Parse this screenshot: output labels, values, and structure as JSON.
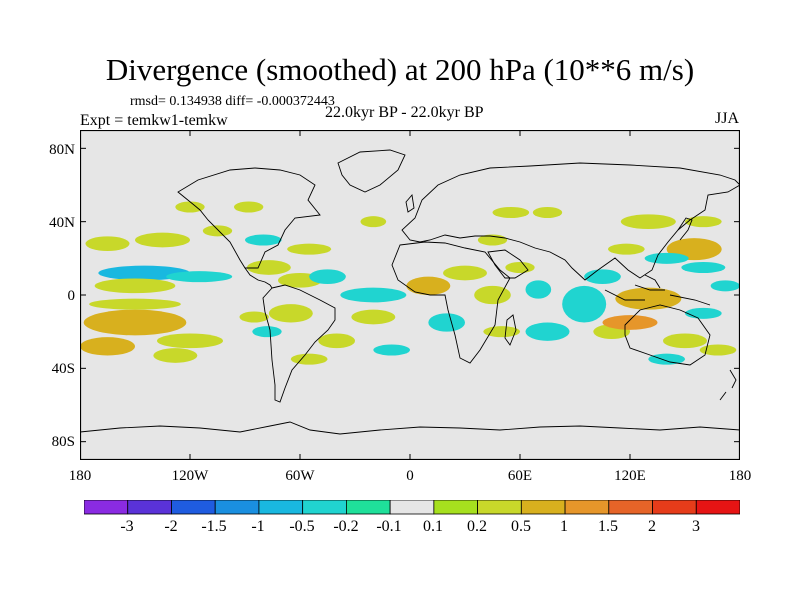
{
  "title": "Divergence (smoothed) at 200 hPa (10**6 m/s)",
  "stats": "rmsd= 0.134938 diff= -0.000372443",
  "experiment": "Expt = temkw1-temkw",
  "period": "22.0kyr BP - 22.0kyr BP",
  "season": "JJA",
  "colors": {
    "ocean_background": "#e6e6e6",
    "levels": [
      "#8a2be2",
      "#5a32d8",
      "#1f5ce0",
      "#1a8fe0",
      "#19b8e0",
      "#20d4d0",
      "#1fe09a",
      "#e6e6e6",
      "#a6e01e",
      "#c8d82a",
      "#d8b01e",
      "#e6962a",
      "#e66428",
      "#e63c1a",
      "#e61414"
    ]
  },
  "chart_data": {
    "type": "heatmap",
    "projection": "cylindrical equidistant",
    "variable": "Divergence (smoothed) at 200 hPa",
    "units": "10**6 m/s",
    "xlim": [
      -180,
      180
    ],
    "ylim": [
      -90,
      90
    ],
    "lat_ticks": [
      {
        "value": 80,
        "label": "80N"
      },
      {
        "value": 40,
        "label": "40N"
      },
      {
        "value": 0,
        "label": "0"
      },
      {
        "value": -40,
        "label": "40S"
      },
      {
        "value": -80,
        "label": "80S"
      }
    ],
    "lon_ticks": [
      {
        "value": -180,
        "label": "180"
      },
      {
        "value": -120,
        "label": "120W"
      },
      {
        "value": -60,
        "label": "60W"
      },
      {
        "value": 0,
        "label": "0"
      },
      {
        "value": 60,
        "label": "60E"
      },
      {
        "value": 120,
        "label": "120E"
      },
      {
        "value": 180,
        "label": "180"
      }
    ],
    "colorbar": {
      "labels": [
        "-3",
        "-2",
        "-1.5",
        "-1",
        "-0.5",
        "-0.2",
        "-0.1",
        "0.1",
        "0.2",
        "0.5",
        "1",
        "1.5",
        "2",
        "3"
      ]
    },
    "anomaly_regions": [
      {
        "lon": -165,
        "lat": 28,
        "rlon": 12,
        "rlat": 4,
        "level": 9
      },
      {
        "lon": -135,
        "lat": 30,
        "rlon": 15,
        "rlat": 4,
        "level": 9
      },
      {
        "lon": -120,
        "lat": 48,
        "rlon": 8,
        "rlat": 3,
        "level": 9
      },
      {
        "lon": -88,
        "lat": 48,
        "rlon": 8,
        "rlat": 3,
        "level": 9
      },
      {
        "lon": -105,
        "lat": 35,
        "rlon": 8,
        "rlat": 3,
        "level": 9
      },
      {
        "lon": -145,
        "lat": 12,
        "rlon": 25,
        "rlat": 4,
        "level": 4
      },
      {
        "lon": -150,
        "lat": 5,
        "rlon": 22,
        "rlat": 4,
        "level": 9
      },
      {
        "lon": -115,
        "lat": 10,
        "rlon": 18,
        "rlat": 3,
        "level": 5
      },
      {
        "lon": -80,
        "lat": 30,
        "rlon": 10,
        "rlat": 3,
        "level": 5
      },
      {
        "lon": -77,
        "lat": 15,
        "rlon": 12,
        "rlat": 4,
        "level": 9
      },
      {
        "lon": -55,
        "lat": 25,
        "rlon": 12,
        "rlat": 3,
        "level": 9
      },
      {
        "lon": -60,
        "lat": 8,
        "rlon": 12,
        "rlat": 4,
        "level": 9
      },
      {
        "lon": -45,
        "lat": 10,
        "rlon": 10,
        "rlat": 4,
        "level": 5
      },
      {
        "lon": -20,
        "lat": 40,
        "rlon": 7,
        "rlat": 3,
        "level": 9
      },
      {
        "lon": -150,
        "lat": -15,
        "rlon": 28,
        "rlat": 7,
        "level": 10
      },
      {
        "lon": -150,
        "lat": -5,
        "rlon": 25,
        "rlat": 3,
        "level": 9
      },
      {
        "lon": -120,
        "lat": -25,
        "rlon": 18,
        "rlat": 4,
        "level": 9
      },
      {
        "lon": -165,
        "lat": -28,
        "rlon": 15,
        "rlat": 5,
        "level": 10
      },
      {
        "lon": -128,
        "lat": -33,
        "rlon": 12,
        "rlat": 4,
        "level": 9
      },
      {
        "lon": -85,
        "lat": -12,
        "rlon": 8,
        "rlat": 3,
        "level": 9
      },
      {
        "lon": -78,
        "lat": -20,
        "rlon": 8,
        "rlat": 3,
        "level": 5
      },
      {
        "lon": -65,
        "lat": -10,
        "rlon": 12,
        "rlat": 5,
        "level": 9
      },
      {
        "lon": -40,
        "lat": -25,
        "rlon": 10,
        "rlat": 4,
        "level": 9
      },
      {
        "lon": -20,
        "lat": -12,
        "rlon": 12,
        "rlat": 4,
        "level": 9
      },
      {
        "lon": -55,
        "lat": -35,
        "rlon": 10,
        "rlat": 3,
        "level": 9
      },
      {
        "lon": -20,
        "lat": 0,
        "rlon": 18,
        "rlat": 4,
        "level": 5
      },
      {
        "lon": -10,
        "lat": -30,
        "rlon": 10,
        "rlat": 3,
        "level": 5
      },
      {
        "lon": 10,
        "lat": 5,
        "rlon": 12,
        "rlat": 5,
        "level": 10
      },
      {
        "lon": 30,
        "lat": 12,
        "rlon": 12,
        "rlat": 4,
        "level": 9
      },
      {
        "lon": 20,
        "lat": -15,
        "rlon": 10,
        "rlat": 5,
        "level": 5
      },
      {
        "lon": 45,
        "lat": 0,
        "rlon": 10,
        "rlat": 5,
        "level": 9
      },
      {
        "lon": 45,
        "lat": 30,
        "rlon": 8,
        "rlat": 3,
        "level": 9
      },
      {
        "lon": 60,
        "lat": 15,
        "rlon": 8,
        "rlat": 3,
        "level": 9
      },
      {
        "lon": 55,
        "lat": 45,
        "rlon": 10,
        "rlat": 3,
        "level": 9
      },
      {
        "lon": 75,
        "lat": 45,
        "rlon": 8,
        "rlat": 3,
        "level": 9
      },
      {
        "lon": 70,
        "lat": 3,
        "rlon": 7,
        "rlat": 5,
        "level": 5
      },
      {
        "lon": 50,
        "lat": -20,
        "rlon": 10,
        "rlat": 3,
        "level": 9
      },
      {
        "lon": 75,
        "lat": -20,
        "rlon": 12,
        "rlat": 5,
        "level": 5
      },
      {
        "lon": 95,
        "lat": -5,
        "rlon": 12,
        "rlat": 10,
        "level": 5
      },
      {
        "lon": 110,
        "lat": -20,
        "rlon": 10,
        "rlat": 4,
        "level": 9
      },
      {
        "lon": 130,
        "lat": -2,
        "rlon": 18,
        "rlat": 6,
        "level": 10
      },
      {
        "lon": 120,
        "lat": -15,
        "rlon": 15,
        "rlat": 4,
        "level": 11
      },
      {
        "lon": 105,
        "lat": 10,
        "rlon": 10,
        "rlat": 4,
        "level": 5
      },
      {
        "lon": 118,
        "lat": 25,
        "rlon": 10,
        "rlat": 3,
        "level": 9
      },
      {
        "lon": 130,
        "lat": 40,
        "rlon": 15,
        "rlat": 4,
        "level": 9
      },
      {
        "lon": 155,
        "lat": 25,
        "rlon": 15,
        "rlat": 6,
        "level": 10
      },
      {
        "lon": 160,
        "lat": 15,
        "rlon": 12,
        "rlat": 3,
        "level": 5
      },
      {
        "lon": 160,
        "lat": 40,
        "rlon": 10,
        "rlat": 3,
        "level": 9
      },
      {
        "lon": 140,
        "lat": 20,
        "rlon": 12,
        "rlat": 3,
        "level": 5
      },
      {
        "lon": 150,
        "lat": -25,
        "rlon": 12,
        "rlat": 4,
        "level": 9
      },
      {
        "lon": 160,
        "lat": -10,
        "rlon": 10,
        "rlat": 3,
        "level": 5
      },
      {
        "lon": 168,
        "lat": -30,
        "rlon": 10,
        "rlat": 3,
        "level": 9
      },
      {
        "lon": 140,
        "lat": -35,
        "rlon": 10,
        "rlat": 3,
        "level": 5
      },
      {
        "lon": 172,
        "lat": 5,
        "rlon": 8,
        "rlat": 3,
        "level": 5
      }
    ]
  }
}
